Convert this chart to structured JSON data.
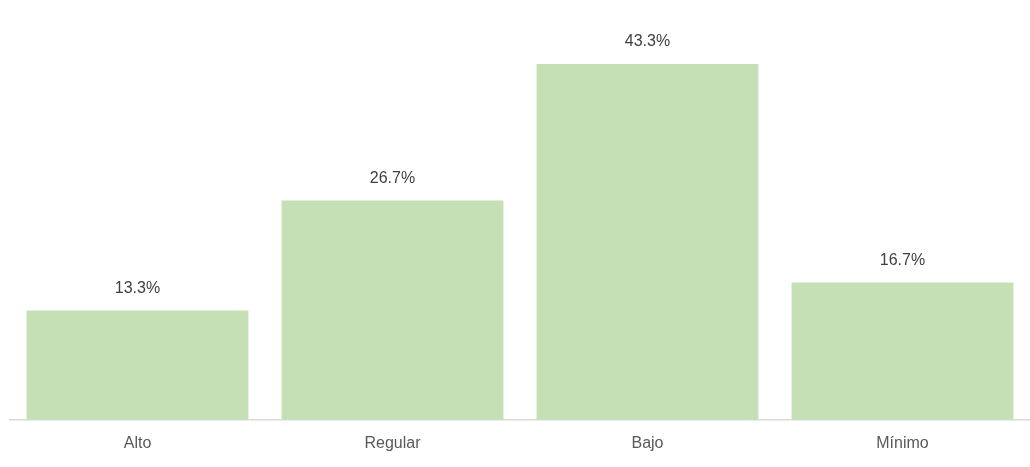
{
  "chart_data": {
    "type": "bar",
    "categories": [
      "Alto",
      "Regular",
      "Bajo",
      "Mínimo"
    ],
    "values": [
      13.3,
      26.7,
      43.3,
      16.7
    ],
    "color": "#c5e0b4",
    "value_labels": [
      "13.3%",
      "26.7%",
      "43.3%",
      "16.7%"
    ],
    "grid": false,
    "legend": false
  }
}
